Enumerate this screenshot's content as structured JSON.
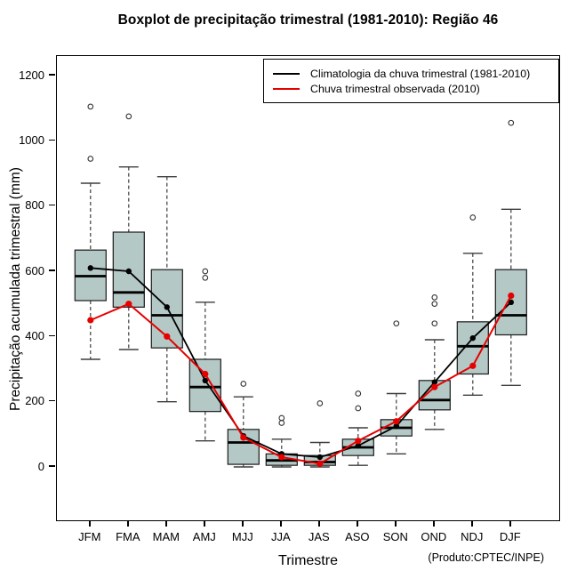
{
  "title": "Boxplot de precipitação trimestral (1981-2010): Região 46",
  "footer": "(Produto:CPTEC/INPE)",
  "chart_data": {
    "type": "boxplot",
    "title": "Boxplot de precipitação trimestral (1981-2010): Região 46",
    "xlabel": "Trimestre",
    "ylabel": "Precipitação acumulada trimestral (mm)",
    "ylim": [
      -100,
      1270
    ],
    "y_ticks": [
      0,
      200,
      400,
      600,
      800,
      1000,
      1200
    ],
    "grid": false,
    "legend_position": "top-right",
    "box_fill": "#b4c8c6",
    "box_edge": "#1a1a1a",
    "whisker_color": "#3d3d3d",
    "categories": [
      "JFM",
      "FMA",
      "MAM",
      "AMJ",
      "MJJ",
      "JJA",
      "JAS",
      "ASO",
      "SON",
      "OND",
      "NDJ",
      "DJF"
    ],
    "boxes": [
      {
        "category": "JFM",
        "whisker_low": 330,
        "q1": 510,
        "median": 585,
        "q3": 665,
        "whisker_high": 870,
        "outliers": [
          1105,
          945
        ]
      },
      {
        "category": "FMA",
        "whisker_low": 360,
        "q1": 490,
        "median": 535,
        "q3": 720,
        "whisker_high": 920,
        "outliers": [
          1075
        ]
      },
      {
        "category": "MAM",
        "whisker_low": 200,
        "q1": 365,
        "median": 465,
        "q3": 605,
        "whisker_high": 890,
        "outliers": []
      },
      {
        "category": "AMJ",
        "whisker_low": 80,
        "q1": 170,
        "median": 245,
        "q3": 330,
        "whisker_high": 505,
        "outliers": [
          600,
          580
        ]
      },
      {
        "category": "MJJ",
        "whisker_low": 0,
        "q1": 8,
        "median": 75,
        "q3": 115,
        "whisker_high": 215,
        "outliers": [
          255
        ]
      },
      {
        "category": "JJA",
        "whisker_low": 0,
        "q1": 5,
        "median": 20,
        "q3": 40,
        "whisker_high": 85,
        "outliers": [
          150,
          135
        ]
      },
      {
        "category": "JAS",
        "whisker_low": 0,
        "q1": 5,
        "median": 15,
        "q3": 35,
        "whisker_high": 75,
        "outliers": [
          195
        ]
      },
      {
        "category": "ASO",
        "whisker_low": 5,
        "q1": 35,
        "median": 60,
        "q3": 85,
        "whisker_high": 120,
        "outliers": [
          225,
          180
        ]
      },
      {
        "category": "SON",
        "whisker_low": 40,
        "q1": 95,
        "median": 120,
        "q3": 145,
        "whisker_high": 225,
        "outliers": [
          440
        ]
      },
      {
        "category": "OND",
        "whisker_low": 115,
        "q1": 175,
        "median": 205,
        "q3": 265,
        "whisker_high": 390,
        "outliers": [
          520,
          500,
          440
        ]
      },
      {
        "category": "NDJ",
        "whisker_low": 220,
        "q1": 285,
        "median": 370,
        "q3": 445,
        "whisker_high": 655,
        "outliers": [
          765
        ]
      },
      {
        "category": "DJF",
        "whisker_low": 250,
        "q1": 405,
        "median": 465,
        "q3": 605,
        "whisker_high": 790,
        "outliers": [
          1055
        ]
      }
    ],
    "series": [
      {
        "name": "Climatologia da chuva trimestral (1981-2010)",
        "color": "#000000",
        "values": [
          610,
          600,
          490,
          265,
          95,
          40,
          30,
          65,
          125,
          260,
          395,
          505
        ]
      },
      {
        "name": "Chuva trimestral observada (2010)",
        "color": "#e60000",
        "values": [
          450,
          500,
          400,
          285,
          90,
          30,
          10,
          80,
          140,
          245,
          310,
          525
        ]
      }
    ]
  }
}
